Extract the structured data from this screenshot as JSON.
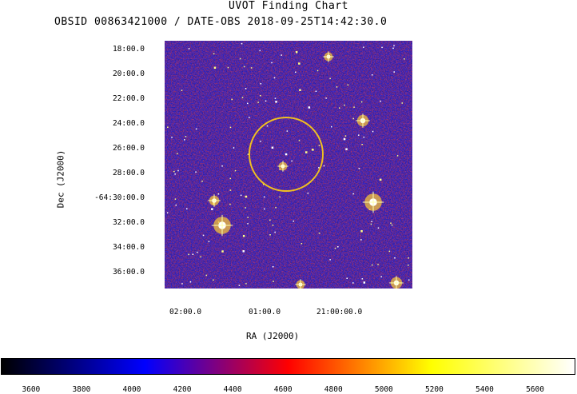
{
  "chart_data": {
    "type": "heatmap",
    "title": "UVOT Finding Chart",
    "subtitle": "OBSID 00863421000 / DATE-OBS 2018-09-25T14:42:30.0",
    "xlabel": "RA (J2000)",
    "ylabel": "Dec (J2000)",
    "x_ticks": [
      "02:00.0",
      "01:00.0",
      "21:00:00.0"
    ],
    "y_ticks": [
      "18:00.0",
      "20:00.0",
      "22:00.0",
      "24:00.0",
      "26:00.0",
      "28:00.0",
      "-64:30:00.0",
      "32:00.0",
      "34:00.0",
      "36:00.0"
    ],
    "colorbar": {
      "ticks": [
        3600,
        3800,
        4000,
        4200,
        4400,
        4600,
        4800,
        5000,
        5200,
        5400,
        5600
      ],
      "range": [
        3480,
        5760
      ],
      "colormap_stops": [
        "#000000",
        "#0000ff",
        "#ff0000",
        "#ffff00",
        "#ffffff"
      ]
    },
    "source_circle_color": "#f0c020",
    "grid": false
  }
}
